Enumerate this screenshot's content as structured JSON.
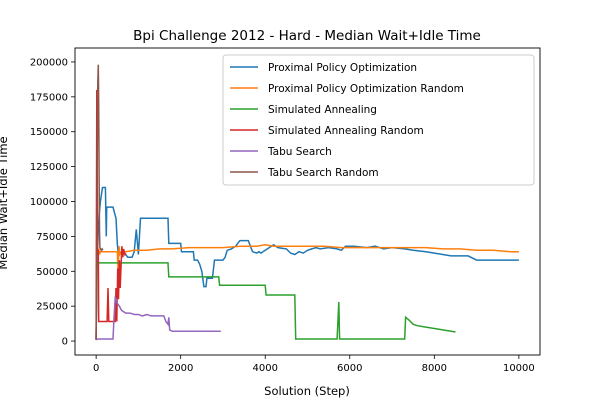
{
  "chart_data": {
    "type": "line",
    "title": "Bpi Challenge 2012 - Hard - Median Wait+Idle Time",
    "xlabel": "Solution (Step)",
    "ylabel": "Median Wait+Idle Time",
    "xlim": [
      -500,
      10500
    ],
    "ylim": [
      -10000,
      210000
    ],
    "xticks": [
      0,
      2000,
      4000,
      6000,
      8000,
      10000
    ],
    "yticks": [
      0,
      25000,
      50000,
      75000,
      100000,
      125000,
      150000,
      175000,
      200000
    ],
    "grid": false,
    "legend_position": "upper right",
    "series": [
      {
        "name": "Proximal Policy Optimization",
        "color": "#1f77b4",
        "x": [
          0,
          20,
          40,
          50,
          70,
          100,
          150,
          200,
          220,
          240,
          250,
          300,
          400,
          450,
          470,
          500,
          520,
          550,
          600,
          700,
          750,
          800,
          850,
          900,
          950,
          1000,
          1050,
          1100,
          1150,
          1700,
          1720,
          2000,
          2020,
          2300,
          2320,
          2400,
          2450,
          2500,
          2550,
          2600,
          2620,
          2700,
          2750,
          2800,
          3000,
          3050,
          3100,
          3200,
          3300,
          3400,
          3600,
          3700,
          3800,
          3850,
          3900,
          4000,
          4200,
          4250,
          4300,
          4500,
          4600,
          4700,
          4800,
          4900,
          5000,
          5100,
          5200,
          5300,
          5500,
          5700,
          5800,
          5900,
          6100,
          6400,
          6600,
          6800,
          7000,
          7300,
          7500,
          7800,
          8000,
          8200,
          8400,
          8500,
          8800,
          9000,
          9500,
          10000
        ],
        "y": [
          1000,
          60000,
          70000,
          80000,
          90000,
          100000,
          110000,
          110000,
          110000,
          75000,
          96000,
          96000,
          96000,
          90000,
          88000,
          70000,
          64000,
          63000,
          64000,
          62000,
          60000,
          60000,
          60000,
          64000,
          80000,
          62000,
          88000,
          88000,
          88000,
          88000,
          70000,
          70000,
          64000,
          64000,
          58000,
          58000,
          55000,
          50000,
          39000,
          39000,
          45000,
          45000,
          45000,
          58000,
          58000,
          60000,
          65000,
          66000,
          68000,
          72000,
          72000,
          64000,
          63000,
          64000,
          63000,
          65000,
          69000,
          68000,
          67000,
          66000,
          63000,
          62000,
          64000,
          63000,
          65000,
          66000,
          67000,
          66000,
          67000,
          66000,
          65000,
          68000,
          68000,
          67000,
          68000,
          66000,
          67000,
          66000,
          65000,
          64000,
          63000,
          62000,
          61000,
          61000,
          61000,
          58000,
          58000,
          58000
        ]
      },
      {
        "name": "Proximal Policy Optimization Random",
        "color": "#ff7f0e",
        "x": [
          0,
          20,
          40,
          60,
          80,
          100,
          150,
          200,
          300,
          500,
          520,
          540,
          560,
          600,
          700,
          900,
          1200,
          1500,
          1800,
          2200,
          2600,
          3000,
          3400,
          3800,
          4000,
          4200,
          4600,
          5000,
          5400,
          5800,
          6200,
          6600,
          7000,
          7400,
          7800,
          8200,
          8600,
          9000,
          9400,
          9800,
          10000
        ],
        "y": [
          62000,
          65000,
          62000,
          66000,
          62000,
          64000,
          64000,
          64000,
          64000,
          64000,
          50000,
          68000,
          62000,
          64000,
          64000,
          65000,
          65000,
          66000,
          66000,
          67000,
          67000,
          67000,
          68000,
          68000,
          69000,
          68000,
          68000,
          68000,
          68000,
          67000,
          67000,
          67000,
          67000,
          67000,
          67000,
          66000,
          66000,
          65000,
          65000,
          64000,
          64000
        ]
      },
      {
        "name": "Simulated Annealing",
        "color": "#2ca02c",
        "x": [
          0,
          20,
          40,
          100,
          200,
          400,
          600,
          800,
          1000,
          1200,
          1400,
          1700,
          1720,
          2000,
          2400,
          2900,
          2920,
          3500,
          4000,
          4020,
          4500,
          4700,
          4720,
          5000,
          5700,
          5740,
          5760,
          5780,
          6000,
          6500,
          7000,
          7300,
          7320,
          7400,
          7500,
          7600,
          7800,
          8000,
          8200,
          8400,
          8500
        ],
        "y": [
          1000,
          57000,
          56000,
          56000,
          56000,
          56000,
          56000,
          56000,
          56000,
          56000,
          56000,
          56000,
          46000,
          46000,
          46000,
          46000,
          40000,
          40000,
          40000,
          33000,
          33000,
          33000,
          1500,
          1500,
          1500,
          28000,
          1500,
          1500,
          1500,
          1500,
          1500,
          1500,
          17000,
          15000,
          12000,
          11000,
          10000,
          9000,
          8000,
          7000,
          6500
        ]
      },
      {
        "name": "Simulated Annealing Random",
        "color": "#d62728",
        "x": [
          0,
          15,
          25,
          35,
          50,
          60,
          80,
          100,
          150,
          200,
          260,
          280,
          300,
          350,
          400,
          450,
          470,
          490,
          510,
          530,
          550,
          570,
          590,
          610,
          630,
          650,
          680,
          700
        ],
        "y": [
          1000,
          180000,
          120000,
          63000,
          65000,
          14000,
          14000,
          14000,
          14000,
          14000,
          14000,
          38000,
          14000,
          14000,
          14000,
          14000,
          38000,
          14000,
          52000,
          30000,
          58000,
          38000,
          55000,
          68000,
          60000,
          66000,
          62000,
          63000
        ]
      },
      {
        "name": "Tabu Search",
        "color": "#9467bd",
        "x": [
          0,
          50,
          100,
          200,
          300,
          400,
          420,
          450,
          480,
          500,
          550,
          600,
          700,
          800,
          900,
          1000,
          1100,
          1200,
          1300,
          1400,
          1500,
          1600,
          1650,
          1700,
          1720,
          1740,
          1800,
          1900,
          2000,
          2200,
          2500,
          2800,
          2950
        ],
        "y": [
          1000,
          1500,
          1500,
          1500,
          1500,
          1500,
          15000,
          31000,
          30000,
          27000,
          25000,
          22000,
          20000,
          20000,
          19000,
          19000,
          18000,
          19000,
          18000,
          18000,
          18000,
          18000,
          14000,
          12000,
          17000,
          8000,
          7000,
          7000,
          7000,
          7000,
          7000,
          7000,
          7000
        ]
      },
      {
        "name": "Tabu Search Random",
        "color": "#8c564b",
        "x": [
          0,
          10,
          20,
          30,
          40,
          50,
          60,
          70,
          80,
          90,
          100,
          120,
          140,
          160
        ],
        "y": [
          1000,
          40000,
          100000,
          150000,
          185000,
          198000,
          170000,
          120000,
          80000,
          67000,
          66000,
          65000,
          66000,
          65000
        ]
      }
    ]
  }
}
